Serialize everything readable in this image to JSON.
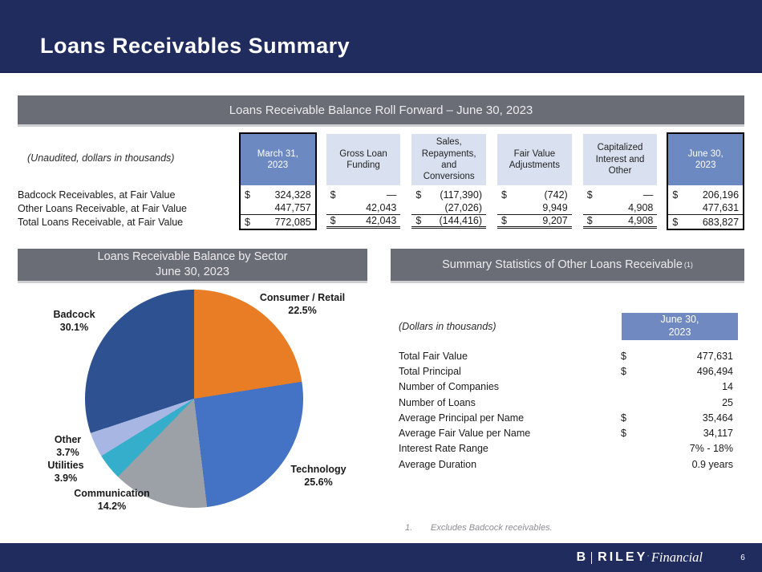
{
  "header": {
    "title": "Loans Receivables Summary"
  },
  "colors": {
    "banner_navy": "#212C5E",
    "section_bar_gray": "#6A6D75",
    "column_header_blue": "#6C89C1",
    "column_header_light_blue": "#D9E1F0",
    "stats_header_blue": "#7089C0"
  },
  "roll_forward": {
    "section_title": "Loans Receivable Balance Roll Forward – June 30, 2023",
    "note": "(Unaudited, dollars in thousands)",
    "columns": [
      "March 31,\n2023",
      "Gross Loan\nFunding",
      "Sales,\nRepayments,\nand\nConversions",
      "Fair Value\nAdjustments",
      "Capitalized\nInterest and\nOther",
      "June 30,\n2023"
    ],
    "rows": [
      {
        "label": "Badcock Receivables, at Fair Value",
        "dollars": [
          "$",
          "$",
          "$",
          "$",
          "$",
          "$"
        ],
        "values": [
          "324,328",
          "—",
          "(117,390)",
          "(742)",
          "—",
          "206,196"
        ]
      },
      {
        "label": "Other Loans Receivable, at Fair Value",
        "dollars": [
          "",
          "",
          "",
          "",
          "",
          ""
        ],
        "values": [
          "447,757",
          "42,043",
          "(27,026)",
          "9,949",
          "4,908",
          "477,631"
        ]
      },
      {
        "label": "Total Loans Receivable, at Fair Value",
        "dollars": [
          "$",
          "$",
          "$",
          "$",
          "$",
          "$"
        ],
        "values": [
          "772,085",
          "42,043",
          "(144,416)",
          "9,207",
          "4,908",
          "683,827"
        ]
      }
    ]
  },
  "sector_section": {
    "title": "Loans Receivable Balance by Sector\nJune 30, 2023"
  },
  "chart_data": {
    "type": "pie",
    "title": "Loans Receivable Balance by Sector – June 30, 2023",
    "direction": "clockwise",
    "start_angle_deg": 0,
    "slices": [
      {
        "label": "Consumer / Retail",
        "value": 22.5,
        "pct_label": "22.5%",
        "color": "#E87D25"
      },
      {
        "label": "Technology",
        "value": 25.6,
        "pct_label": "25.6%",
        "color": "#4472C4"
      },
      {
        "label": "Communication",
        "value": 14.2,
        "pct_label": "14.2%",
        "color": "#9CA1A7"
      },
      {
        "label": "Utilities",
        "value": 3.9,
        "pct_label": "3.9%",
        "color": "#34AECB"
      },
      {
        "label": "Other",
        "value": 3.7,
        "pct_label": "3.7%",
        "color": "#A8B6E4"
      },
      {
        "label": "Badcock",
        "value": 30.1,
        "pct_label": "30.1%",
        "color": "#2E5191"
      }
    ]
  },
  "summary_stats": {
    "section_title": "Summary Statistics of Other Loans Receivable",
    "section_superscript": "(1)",
    "note": "(Dollars in thousands)",
    "column_header": "June 30,\n2023",
    "rows": [
      {
        "label": "Total Fair Value",
        "dollar": "$",
        "value": "477,631"
      },
      {
        "label": "Total Principal",
        "dollar": "$",
        "value": "496,494"
      },
      {
        "label": "Number of Companies",
        "dollar": "",
        "value": "14"
      },
      {
        "label": "Number of Loans",
        "dollar": "",
        "value": "25"
      },
      {
        "label": "Average Principal per Name",
        "dollar": "$",
        "value": "35,464"
      },
      {
        "label": "Average Fair Value per Name",
        "dollar": "$",
        "value": "34,117"
      },
      {
        "label": "Interest Rate Range",
        "dollar": "",
        "value": "7% - 18%"
      },
      {
        "label": "Average Duration",
        "dollar": "",
        "value": "0.9 years"
      }
    ]
  },
  "footnote": {
    "number": "1.",
    "text": "Excludes Badcock receivables."
  },
  "footer": {
    "brand_b": "B",
    "brand_riley": "RILEY",
    "brand_mark": "’",
    "brand_financial": "Financial",
    "page_number": "6"
  }
}
